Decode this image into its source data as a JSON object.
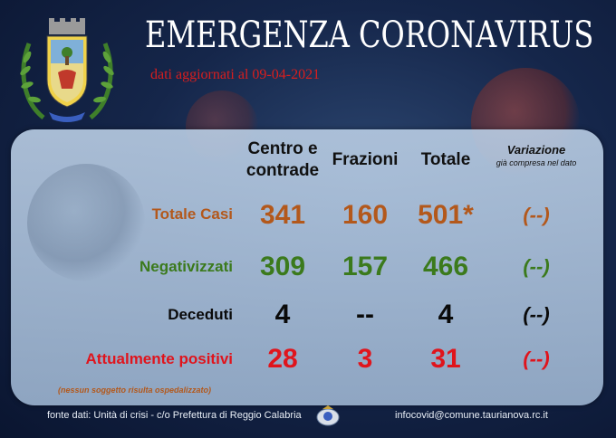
{
  "header": {
    "title": "EMERGENZA CORONAVIRUS",
    "subtitle": "dati aggiornati al 09-04-2021"
  },
  "table": {
    "columns": {
      "centro": "Centro e contrade",
      "frazioni": "Frazioni",
      "totale": "Totale",
      "variazione": "Variazione",
      "variazione_note": "già compresa nel dato"
    },
    "rows": [
      {
        "label": "Totale Casi",
        "centro": "341",
        "frazioni": "160",
        "totale": "501*",
        "variazione": "(--)",
        "color": "#b3581b"
      },
      {
        "label": "Negativizzati",
        "centro": "309",
        "frazioni": "157",
        "totale": "466",
        "variazione": "(--)",
        "color": "#3b7a1c"
      },
      {
        "label": "Deceduti",
        "centro": "4",
        "frazioni": "--",
        "totale": "4",
        "variazione": "(--)",
        "color": "#0a0a0a"
      },
      {
        "label": "Attualmente positivi",
        "centro": "28",
        "frazioni": "3",
        "totale": "31",
        "variazione": "(--)",
        "color": "#e0141c"
      }
    ],
    "hospital_note": "(nessun soggetto risulta ospedalizzato)"
  },
  "footer": {
    "source": "fonte dati: Unità di crisi - c/o Prefettura di Reggio Calabria",
    "email": "infocovid@comune.taurianova.rc.it"
  },
  "icons": {
    "crest": "municipal-crest-icon",
    "emblem": "prefettura-emblem-icon"
  }
}
